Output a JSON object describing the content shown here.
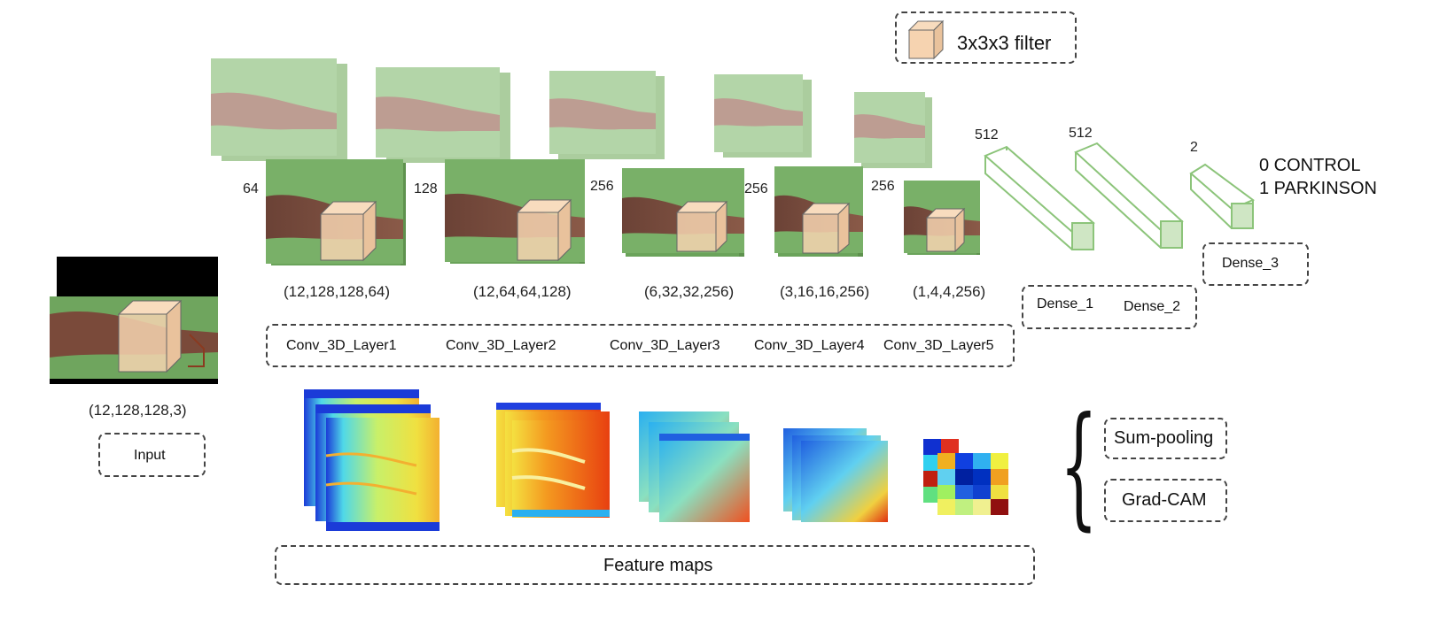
{
  "filter_legend": {
    "label": "3x3x3 filter",
    "color": "#f6d3b0"
  },
  "input": {
    "shape": "(12,128,128,3)",
    "label": "Input"
  },
  "conv_layers": [
    {
      "name": "Conv_3D_Layer1",
      "channels": "64",
      "shape": "(12,128,128,64)"
    },
    {
      "name": "Conv_3D_Layer2",
      "channels": "128",
      "shape": "(12,64,64,128)"
    },
    {
      "name": "Conv_3D_Layer3",
      "channels": "256",
      "shape": "(6,32,32,256)"
    },
    {
      "name": "Conv_3D_Layer4",
      "channels": "256",
      "shape": "(3,16,16,256)"
    },
    {
      "name": "Conv_3D_Layer5",
      "channels": "256",
      "shape": "(1,4,4,256)"
    }
  ],
  "dense_layers": [
    {
      "name": "Dense_1",
      "units": "512"
    },
    {
      "name": "Dense_2",
      "units": "512"
    },
    {
      "name": "Dense_3",
      "units": "2"
    }
  ],
  "outputs": [
    "0 CONTROL",
    "1 PARKINSON"
  ],
  "feature_maps_label": "Feature maps",
  "explain_methods": [
    "Sum-pooling",
    "Grad-CAM"
  ],
  "colors": {
    "green": "#7fb36b",
    "skin": "#7a4a3a",
    "dense_edge": "#8cc47a"
  }
}
